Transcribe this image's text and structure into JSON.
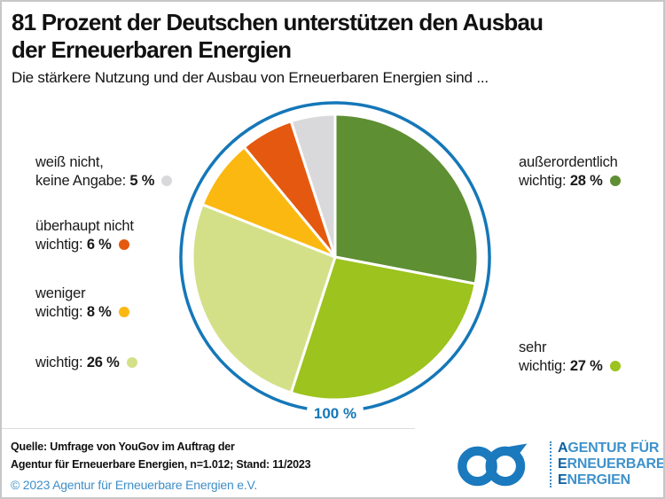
{
  "header": {
    "title_line1": "81 Prozent der Deutschen unterstützen den Ausbau",
    "title_line2": "der Erneuerbaren Energien",
    "subtitle": "Die stärkere Nutzung und der Ausbau von Erneuerbaren Energien sind ..."
  },
  "chart_data": {
    "type": "pie",
    "title": "81 Prozent der Deutschen unterstützen den Ausbau der Erneuerbaren Energien",
    "subtitle": "Die stärkere Nutzung und der Ausbau von Erneuerbaren Energien sind ...",
    "unit": "%",
    "start_angle_deg": 0,
    "direction": "clockwise",
    "total_label": "100 %",
    "ring_color": "#1577b8",
    "slices": [
      {
        "label": "außerordentlich wichtig",
        "value": 28,
        "color": "#5e8f33",
        "legend": {
          "line1": "außerordentlich",
          "line2_prefix": "wichtig: ",
          "pct": "28 %",
          "side": "right"
        }
      },
      {
        "label": "sehr wichtig",
        "value": 27,
        "color": "#9cc31e",
        "legend": {
          "line1": "sehr",
          "line2_prefix": "wichtig: ",
          "pct": "27 %",
          "side": "right"
        }
      },
      {
        "label": "wichtig",
        "value": 26,
        "color": "#d3e088",
        "legend": {
          "line1": "",
          "line2_prefix": "wichtig: ",
          "pct": "26 %",
          "side": "left"
        }
      },
      {
        "label": "weniger wichtig",
        "value": 8,
        "color": "#fbb810",
        "legend": {
          "line1": "weniger",
          "line2_prefix": "wichtig: ",
          "pct": "8 %",
          "side": "left"
        }
      },
      {
        "label": "überhaupt nicht wichtig",
        "value": 6,
        "color": "#e4590f",
        "legend": {
          "line1": "überhaupt nicht",
          "line2_prefix": "wichtig: ",
          "pct": "6 %",
          "side": "left"
        }
      },
      {
        "label": "weiß nicht, keine Angabe",
        "value": 5,
        "color": "#d9d9db",
        "legend": {
          "line1": "weiß nicht,",
          "line2_prefix": "keine Angabe: ",
          "pct": "5 %",
          "side": "left"
        }
      }
    ]
  },
  "footer": {
    "source_line1": "Quelle: Umfrage von YouGov im Auftrag der",
    "source_line2": "Agentur für Erneuerbare Energien, n=1.012; Stand: 11/2023",
    "copyright": "© 2023 Agentur für Erneuerbare Energien e.V.",
    "copyright_color": "#3e8fc9"
  },
  "logo": {
    "icon_color": "#1b79bd",
    "first_color": "#0d5f9e",
    "rest_color": "#3e92cb",
    "lines": [
      {
        "first": "A",
        "rest": "GENTUR FÜR"
      },
      {
        "first": "E",
        "rest": "RNEUERBARE"
      },
      {
        "first": "E",
        "rest": "NERGIEN"
      }
    ]
  }
}
